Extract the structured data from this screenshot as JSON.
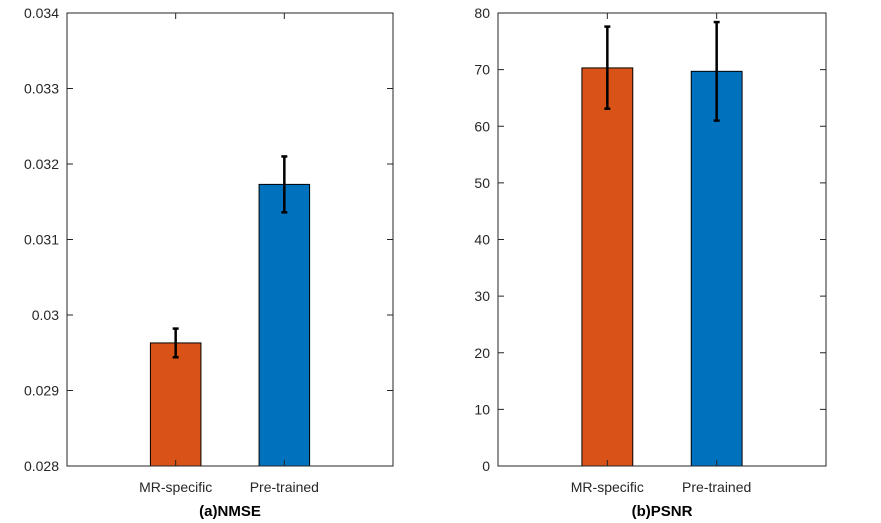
{
  "chart_data": [
    {
      "type": "bar",
      "title": "(a)NMSE",
      "xlabel": "",
      "ylabel": "",
      "categories": [
        "MR-specific",
        "Pre-trained"
      ],
      "values": [
        0.02963,
        0.03173
      ],
      "error_low": [
        0.02944,
        0.03136
      ],
      "error_high": [
        0.02982,
        0.0321
      ],
      "bar_colors": [
        "#D95319",
        "#0072BD"
      ],
      "ylim": [
        0.028,
        0.034
      ],
      "yticks": [
        0.028,
        0.029,
        0.03,
        0.031,
        0.032,
        0.033,
        0.034
      ],
      "ytick_labels": [
        "0.028",
        "0.029",
        "0.03",
        "0.031",
        "0.032",
        "0.033",
        "0.034"
      ],
      "grid": false,
      "legend": false
    },
    {
      "type": "bar",
      "title": "(b)PSNR",
      "xlabel": "",
      "ylabel": "",
      "categories": [
        "MR-specific",
        "Pre-trained"
      ],
      "values": [
        70.3,
        69.7
      ],
      "error_low": [
        63.1,
        61.0
      ],
      "error_high": [
        77.6,
        78.4
      ],
      "bar_colors": [
        "#D95319",
        "#0072BD"
      ],
      "ylim": [
        0,
        80
      ],
      "yticks": [
        0,
        10,
        20,
        30,
        40,
        50,
        60,
        70,
        80
      ],
      "ytick_labels": [
        "0",
        "10",
        "20",
        "30",
        "40",
        "50",
        "60",
        "70",
        "80"
      ],
      "grid": false,
      "legend": false
    }
  ]
}
